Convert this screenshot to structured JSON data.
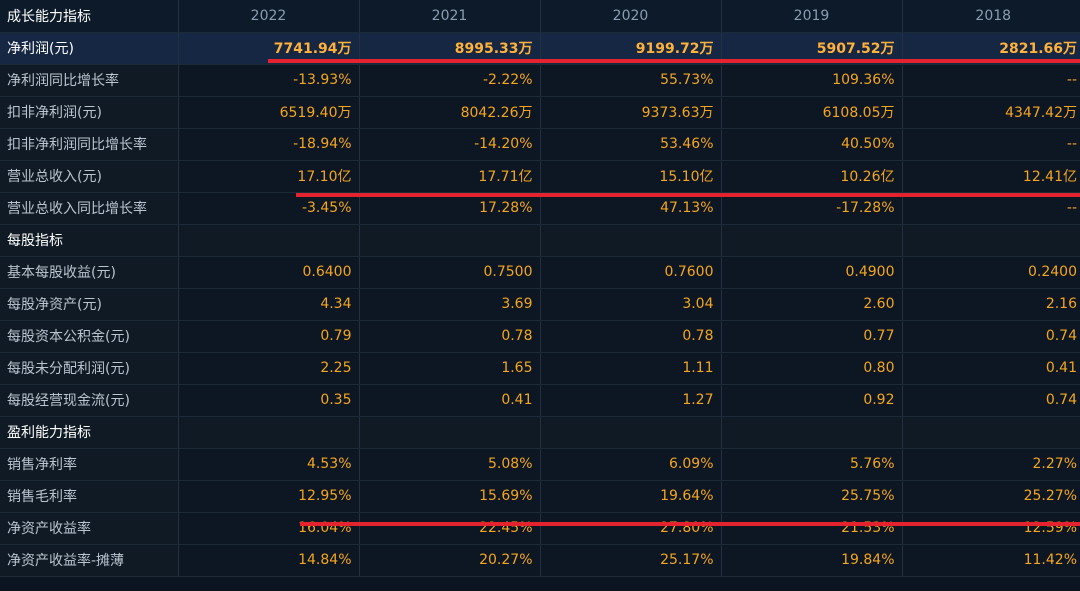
{
  "header": {
    "title": "成长能力指标",
    "years": [
      "2022",
      "2021",
      "2020",
      "2019",
      "2018"
    ]
  },
  "rows": [
    {
      "label": "净利润(元)",
      "values": [
        "7741.94万",
        "8995.33万",
        "9199.72万",
        "5907.52万",
        "2821.66万"
      ]
    },
    {
      "label": "净利润同比增长率",
      "values": [
        "-13.93%",
        "-2.22%",
        "55.73%",
        "109.36%",
        "--"
      ]
    },
    {
      "label": "扣非净利润(元)",
      "values": [
        "6519.40万",
        "8042.26万",
        "9373.63万",
        "6108.05万",
        "4347.42万"
      ]
    },
    {
      "label": "扣非净利润同比增长率",
      "values": [
        "-18.94%",
        "-14.20%",
        "53.46%",
        "40.50%",
        "--"
      ]
    },
    {
      "label": "营业总收入(元)",
      "values": [
        "17.10亿",
        "17.71亿",
        "15.10亿",
        "10.26亿",
        "12.41亿"
      ]
    },
    {
      "label": "营业总收入同比增长率",
      "values": [
        "-3.45%",
        "17.28%",
        "47.13%",
        "-17.28%",
        "--"
      ]
    },
    {
      "label": "每股指标",
      "values": [
        "",
        "",
        "",
        "",
        ""
      ]
    },
    {
      "label": "基本每股收益(元)",
      "values": [
        "0.6400",
        "0.7500",
        "0.7600",
        "0.4900",
        "0.2400"
      ]
    },
    {
      "label": "每股净资产(元)",
      "values": [
        "4.34",
        "3.69",
        "3.04",
        "2.60",
        "2.16"
      ]
    },
    {
      "label": "每股资本公积金(元)",
      "values": [
        "0.79",
        "0.78",
        "0.78",
        "0.77",
        "0.74"
      ]
    },
    {
      "label": "每股未分配利润(元)",
      "values": [
        "2.25",
        "1.65",
        "1.11",
        "0.80",
        "0.41"
      ]
    },
    {
      "label": "每股经营现金流(元)",
      "values": [
        "0.35",
        "0.41",
        "1.27",
        "0.92",
        "0.74"
      ]
    },
    {
      "label": "盈利能力指标",
      "values": [
        "",
        "",
        "",
        "",
        ""
      ]
    },
    {
      "label": "销售净利率",
      "values": [
        "4.53%",
        "5.08%",
        "6.09%",
        "5.76%",
        "2.27%"
      ]
    },
    {
      "label": "销售毛利率",
      "values": [
        "12.95%",
        "15.69%",
        "19.64%",
        "25.75%",
        "25.27%"
      ]
    },
    {
      "label": "净资产收益率",
      "values": [
        "16.04%",
        "22.45%",
        "27.80%",
        "21.53%",
        "12.59%"
      ]
    },
    {
      "label": "净资产收益率-摊薄",
      "values": [
        "14.84%",
        "20.27%",
        "25.17%",
        "19.84%",
        "11.42%"
      ]
    }
  ],
  "colors": {
    "accent": "#f5a51e",
    "underline": "#e5232f"
  }
}
